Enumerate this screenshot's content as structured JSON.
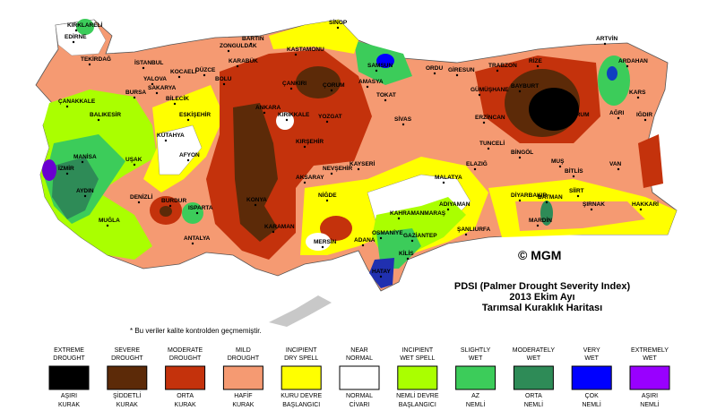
{
  "title": {
    "line1": "PDSI (Palmer Drought Severity Index)",
    "line2": "2013 Ekim Ayı",
    "line3": "Tarımsal Kuraklık Haritası"
  },
  "copyright": "© MGM",
  "note": "* Bu veriler kalite kontrolden geçmemiştir.",
  "cities": [
    "SİNOP",
    "BARTIN",
    "ZONGULDAK",
    "KASTAMONU",
    "KIRKLARELİ",
    "EDİRNE",
    "TEKİRDAĞ",
    "İSTANBUL",
    "SAKARYA",
    "DÜZCE",
    "BOLU",
    "KARABÜK",
    "ÇANKIRI",
    "ÇORUM",
    "AMASYA",
    "SAMSUN",
    "ORDU",
    "GİRESUN",
    "TRABZON",
    "RİZE",
    "ARTVİN",
    "ARDAHAN",
    "KARS",
    "IĞDIR",
    "ERZURUM",
    "GÜMÜŞHANE",
    "BAYBURT",
    "ERZİNCAN",
    "TUNCELİ",
    "BİNGÖL",
    "MUŞ",
    "AĞRI",
    "VAN",
    "BİTLİS",
    "SİİRT",
    "HAKKARİ",
    "ŞIRNAK",
    "BATMAN",
    "DİYARBAKIR",
    "MARDİN",
    "ŞANLIURFA",
    "ADIYAMAN",
    "MALATYA",
    "ELAZIĞ",
    "KAHRAMANMARAŞ",
    "GAZİANTEP",
    "KİLİS",
    "OSMANİYE",
    "HATAY",
    "ADANA",
    "MERSİN",
    "NİĞDE",
    "KARAMAN",
    "KONYA",
    "AKSARAY",
    "NEVŞEHİR",
    "KAYSERİ",
    "KIRŞEHİR",
    "KIRIKKALE",
    "ANKARA",
    "YOZGAT",
    "SİVAS",
    "TOKAT",
    "ESKİŞEHİR",
    "BİLECİK",
    "BURSA",
    "YALOVA",
    "KOCAELİ",
    "ÇANAKKALE",
    "BALIKESİR",
    "KÜTAHYA",
    "AFYON",
    "MANİSA",
    "İZMİR",
    "AYDIN",
    "MUĞLA",
    "DENİZLİ",
    "BURDUR",
    "ISPARTA",
    "ANTALYA",
    "UŞAK"
  ],
  "legend": [
    {
      "en": [
        "EXTREME",
        "DROUGHT"
      ],
      "tr": [
        "AŞIRI",
        "KURAK"
      ],
      "color": "#000000"
    },
    {
      "en": [
        "SEVERE",
        "DROUGHT"
      ],
      "tr": [
        "ŞİDDETLİ",
        "KURAK"
      ],
      "color": "#5c2a08"
    },
    {
      "en": [
        "MODERATE",
        "DROUGHT"
      ],
      "tr": [
        "ORTA",
        "KURAK"
      ],
      "color": "#c4320c"
    },
    {
      "en": [
        "MILD",
        "DROUGHT"
      ],
      "tr": [
        "HAFİF",
        "KURAK"
      ],
      "color": "#f59a72"
    },
    {
      "en": [
        "INCIPIENT",
        "DRY SPELL"
      ],
      "tr": [
        "KURU DEVRE",
        "BAŞLANGICI"
      ],
      "color": "#ffff00"
    },
    {
      "en": [
        "NEAR",
        "NORMAL"
      ],
      "tr": [
        "NORMAL",
        "CİVARI"
      ],
      "color": "#ffffff"
    },
    {
      "en": [
        "INCIPIENT",
        "WET SPELL"
      ],
      "tr": [
        "NEMLİ DEVRE",
        "BAŞLANGICI"
      ],
      "color": "#aaff00"
    },
    {
      "en": [
        "SLIGHTLY",
        "WET"
      ],
      "tr": [
        "AZ",
        "NEMLİ"
      ],
      "color": "#3ccc5a"
    },
    {
      "en": [
        "MODERATELY",
        "WET"
      ],
      "tr": [
        "ORTA",
        "NEMLİ"
      ],
      "color": "#2e8b57"
    },
    {
      "en": [
        "VERY",
        "WET"
      ],
      "tr": [
        "ÇOK",
        "NEMLİ"
      ],
      "color": "#0000ff"
    },
    {
      "en": [
        "EXTREMELY",
        "WET"
      ],
      "tr": [
        "AŞIRI",
        "NEMLİ"
      ],
      "color": "#9900ff"
    }
  ]
}
